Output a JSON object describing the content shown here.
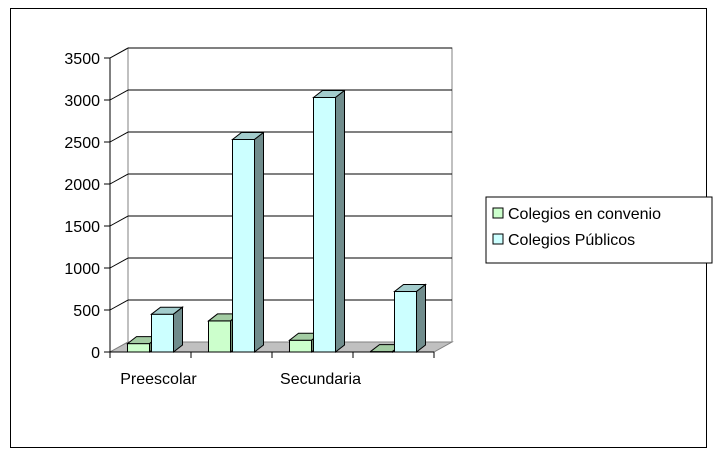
{
  "chart_data": {
    "type": "bar",
    "style": "3d-clustered-column",
    "categories": [
      "Preescolar",
      "",
      "Secundaria",
      ""
    ],
    "series": [
      {
        "name": "Colegios en convenio",
        "values": [
          100,
          370,
          140,
          5
        ],
        "color": "#ccffcc"
      },
      {
        "name": "Colegios Públicos",
        "values": [
          450,
          2530,
          3030,
          720
        ],
        "color": "#ccffff"
      }
    ],
    "title": "",
    "xlabel": "",
    "ylabel": "",
    "ylim": [
      0,
      3500
    ],
    "yticks": [
      0,
      500,
      1000,
      1500,
      2000,
      2500,
      3000,
      3500
    ],
    "grid": true,
    "legend_position": "right"
  }
}
